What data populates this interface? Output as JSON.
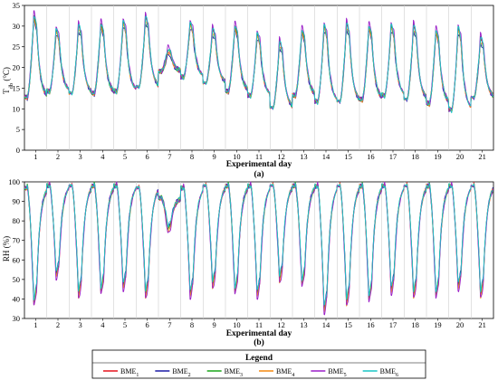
{
  "chart_data": [
    {
      "type": "line",
      "panel_label": "(a)",
      "xlabel": "Experimental day",
      "ylabel": "T",
      "ylabel_sub": "db",
      "ylabel_unit": " (°C)",
      "ylim": [
        0,
        35
      ],
      "yticks": [
        0,
        5,
        10,
        15,
        20,
        25,
        30,
        35
      ],
      "xlim": [
        0.5,
        21.5
      ],
      "x_tick_labels": [
        "1",
        "2",
        "3",
        "4",
        "5",
        "6",
        "7",
        "8",
        "9",
        "10",
        "11",
        "12",
        "13",
        "14",
        "15",
        "16",
        "17",
        "18",
        "19",
        "20",
        "21"
      ],
      "grid": "vertical lines between days",
      "days": [
        1,
        2,
        3,
        4,
        5,
        6,
        7,
        8,
        9,
        10,
        11,
        12,
        13,
        14,
        15,
        16,
        17,
        18,
        19,
        20,
        21
      ],
      "daily_max": [
        32.5,
        29,
        30,
        30.5,
        31,
        32,
        24,
        30.5,
        29,
        30,
        28,
        26,
        29,
        30,
        30.5,
        30,
        30,
        30,
        29,
        29.5,
        27
      ],
      "daily_min": [
        12.5,
        14,
        13.5,
        13.5,
        14,
        15,
        19,
        17.5,
        16,
        14,
        13,
        10,
        13,
        11.5,
        11.5,
        12,
        13,
        12,
        11,
        9.5,
        12.5
      ],
      "series": [
        {
          "name": "BME1",
          "offset": 0.0
        },
        {
          "name": "BME2",
          "offset": -0.8
        },
        {
          "name": "BME3",
          "offset": 0.3
        },
        {
          "name": "BME4",
          "offset": -0.3
        },
        {
          "name": "BME5",
          "offset": 1.2
        },
        {
          "name": "BME6",
          "offset": 0.6
        }
      ]
    },
    {
      "type": "line",
      "panel_label": "(b)",
      "xlabel": "Experimental day",
      "ylabel": "RH (%)",
      "ylim": [
        30,
        100
      ],
      "yticks": [
        30,
        40,
        50,
        60,
        70,
        80,
        90,
        100
      ],
      "xlim": [
        0.5,
        21.5
      ],
      "x_tick_labels": [
        "1",
        "2",
        "3",
        "4",
        "5",
        "6",
        "7",
        "8",
        "9",
        "10",
        "11",
        "12",
        "13",
        "14",
        "15",
        "16",
        "17",
        "18",
        "19",
        "20",
        "21"
      ],
      "grid": "vertical lines between days",
      "days": [
        1,
        2,
        3,
        4,
        5,
        6,
        7,
        8,
        9,
        10,
        11,
        12,
        13,
        14,
        15,
        16,
        17,
        18,
        19,
        20,
        21
      ],
      "daily_max": [
        98,
        99,
        99,
        99,
        99,
        98,
        92,
        98,
        99,
        99,
        99,
        99,
        99,
        99,
        99,
        99,
        99,
        99,
        99,
        99,
        99
      ],
      "daily_min": [
        38,
        52,
        42,
        44,
        46,
        42,
        76,
        42,
        47,
        44,
        42,
        50,
        48,
        34,
        38,
        40,
        44,
        42,
        42,
        46,
        42
      ],
      "series": [
        {
          "name": "BME1",
          "offset": 0.0
        },
        {
          "name": "BME2",
          "offset": 1.0
        },
        {
          "name": "BME3",
          "offset": -0.5
        },
        {
          "name": "BME4",
          "offset": -1.5
        },
        {
          "name": "BME5",
          "offset": -3.0
        },
        {
          "name": "BME6",
          "offset": 1.5
        }
      ]
    }
  ],
  "legend": {
    "title": "Legend",
    "items": [
      {
        "base": "BME",
        "sub": "1",
        "color": "#e8202a"
      },
      {
        "base": "BME",
        "sub": "2",
        "color": "#1a1aa6"
      },
      {
        "base": "BME",
        "sub": "3",
        "color": "#1aa61a"
      },
      {
        "base": "BME",
        "sub": "4",
        "color": "#f5901e"
      },
      {
        "base": "BME",
        "sub": "5",
        "color": "#9b1fc8"
      },
      {
        "base": "BME",
        "sub": "6",
        "color": "#19c6c6"
      }
    ]
  }
}
